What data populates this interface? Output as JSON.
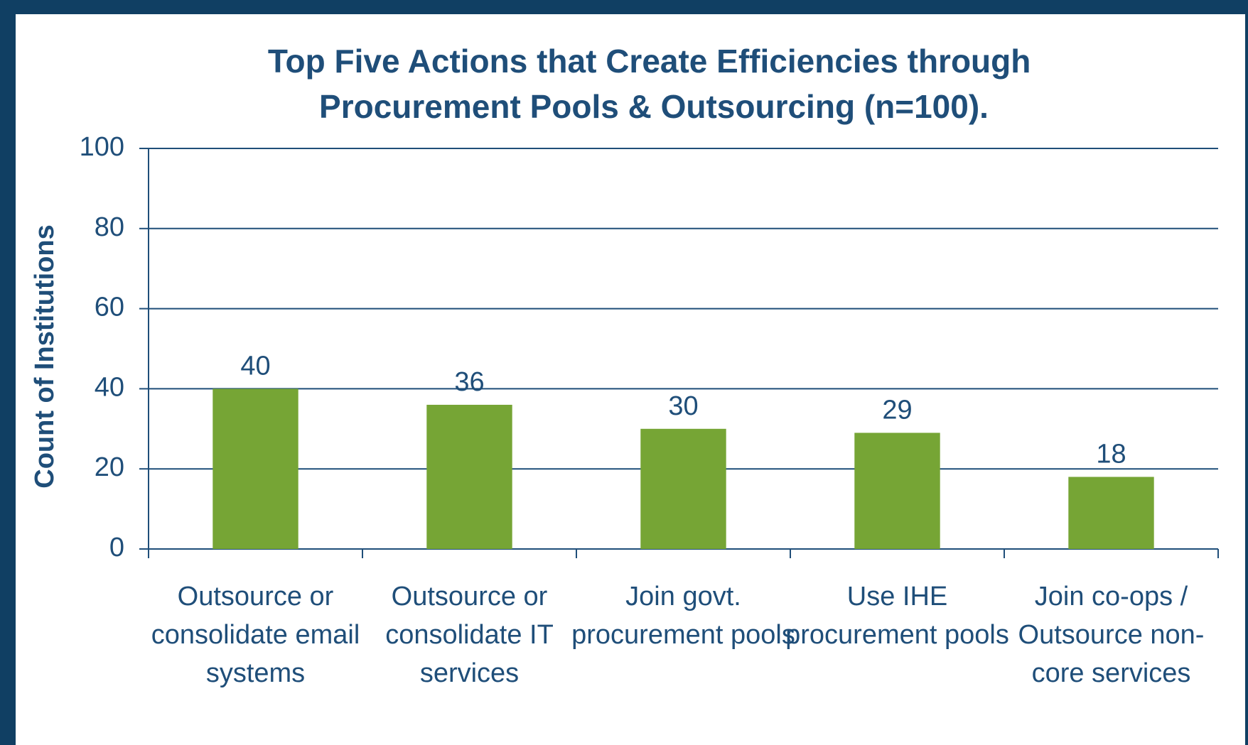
{
  "chart_data": {
    "type": "bar",
    "title": "Top Five Actions that Create Efficiencies through Procurement Pools & Outsourcing (n=100).",
    "ylabel": "Count of Institutions",
    "categories": [
      "Outsource or consolidate email systems",
      "Outsource or consolidate IT services",
      "Join govt. procurement pools",
      "Use IHE procurement pools",
      "Join co-ops / Outsource non-core services"
    ],
    "values": [
      40,
      36,
      30,
      29,
      18
    ],
    "color": "#76a535",
    "ylim": [
      0,
      100
    ],
    "yticks": [
      0,
      20,
      40,
      60,
      80,
      100
    ],
    "grid": true
  }
}
